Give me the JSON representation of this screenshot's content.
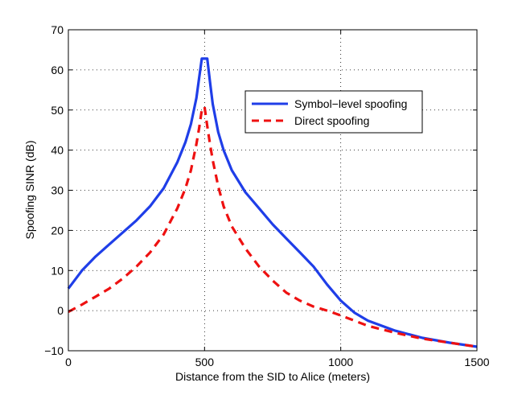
{
  "chart_data": {
    "type": "line",
    "title": "",
    "xlabel": "Distance from the SID to Alice (meters)",
    "ylabel": "Spoofing SINR (dB)",
    "xlim": [
      0,
      1500
    ],
    "ylim": [
      -10,
      70
    ],
    "xticks": [
      0,
      500,
      1000,
      1500
    ],
    "yticks": [
      -10,
      0,
      10,
      20,
      30,
      40,
      50,
      60,
      70
    ],
    "grid": true,
    "legend_position": "upper-right",
    "series": [
      {
        "name": "Symbol−level spoofing",
        "color": "#1f3ee8",
        "style": "solid",
        "x": [
          0,
          50,
          100,
          150,
          200,
          250,
          300,
          350,
          400,
          430,
          450,
          470,
          480,
          490,
          510,
          520,
          530,
          550,
          570,
          600,
          650,
          700,
          750,
          800,
          850,
          900,
          950,
          1000,
          1050,
          1100,
          1200,
          1300,
          1400,
          1500
        ],
        "y": [
          5.5,
          10,
          13.5,
          16.5,
          19.5,
          22.5,
          26,
          30.5,
          37,
          42,
          46.5,
          53,
          58,
          62.8,
          62.8,
          57,
          51.5,
          44.5,
          40,
          35,
          29.5,
          25.5,
          21.5,
          18,
          14.5,
          11,
          6.5,
          2.5,
          -0.5,
          -2.5,
          -5,
          -6.8,
          -8,
          -9
        ]
      },
      {
        "name": "Direct spoofing",
        "color": "#ee1111",
        "style": "dashed",
        "x": [
          0,
          50,
          100,
          150,
          200,
          250,
          300,
          350,
          400,
          430,
          450,
          470,
          480,
          490,
          500,
          510,
          520,
          530,
          550,
          570,
          600,
          650,
          700,
          750,
          800,
          850,
          900,
          950,
          1000,
          1050,
          1100,
          1200,
          1300,
          1400,
          1500
        ],
        "y": [
          -0.3,
          1.5,
          3.5,
          5.5,
          8,
          11,
          14.5,
          19,
          25.5,
          30.5,
          35,
          41.5,
          45.5,
          50,
          50.8,
          46,
          41.5,
          37.5,
          31,
          26,
          21,
          15.5,
          11,
          7.5,
          4.5,
          2.5,
          1,
          0,
          -1.2,
          -2.5,
          -3.8,
          -5.5,
          -7,
          -8,
          -9
        ]
      }
    ]
  }
}
